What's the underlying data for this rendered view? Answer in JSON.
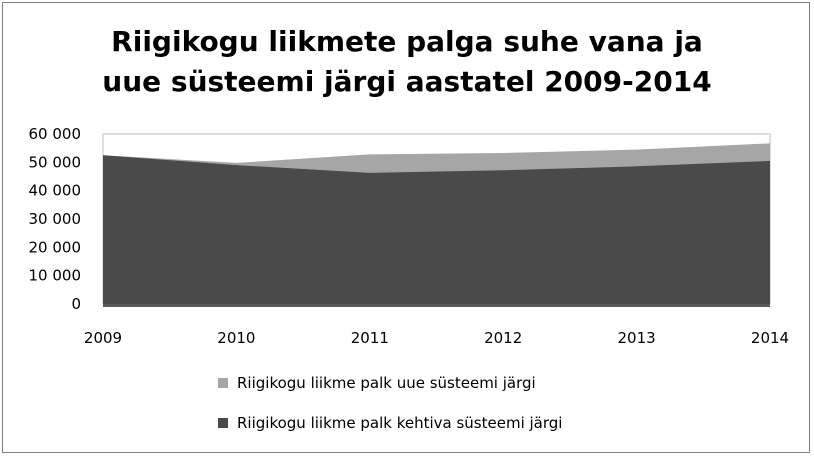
{
  "chart_data": {
    "type": "area",
    "title_lines": [
      "Riigikogu liikmete palga suhe vana ja",
      "uue süsteemi järgi aastatel 2009-2014"
    ],
    "x": [
      "2009",
      "2010",
      "2011",
      "2012",
      "2013",
      "2014"
    ],
    "ylim": [
      0,
      60000
    ],
    "yticks": [
      0,
      10000,
      20000,
      30000,
      40000,
      50000,
      60000
    ],
    "ytick_labels": [
      "0",
      "10 000",
      "20 000",
      "30 000",
      "40 000",
      "50 000",
      "60 000"
    ],
    "grid": "top-border",
    "legend_position": "bottom",
    "series": [
      {
        "name": "Riigikogu liikme palk uue süsteemi järgi",
        "color": "#a6a6a6",
        "values": [
          52500,
          49800,
          52800,
          53300,
          54500,
          56700
        ]
      },
      {
        "name": "Riigikogu liikme palk kehtiva süsteemi järgi",
        "color": "#4a4a4a",
        "values": [
          52500,
          49000,
          46300,
          47200,
          48600,
          50500
        ]
      }
    ]
  }
}
